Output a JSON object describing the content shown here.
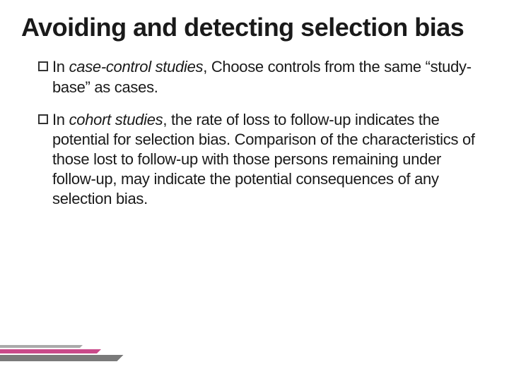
{
  "slide": {
    "title": "Avoiding and detecting selection bias",
    "bullets": [
      {
        "prefix": "In ",
        "italicPhrase": "case-control studies",
        "rest": ", Choose controls from the same “study-base” as cases."
      },
      {
        "prefix": "In ",
        "italicPhrase": "cohort studies",
        "rest": ", the rate of loss to follow-up indicates the potential for selection bias. Comparison of the characteristics of those lost to follow-up with those persons remaining under follow-up, may indicate the potential consequences of any selection bias."
      }
    ]
  },
  "styling": {
    "background_color": "#ffffff",
    "title_color": "#1a1a1a",
    "title_fontsize": 36,
    "body_fontsize": 22,
    "body_color": "#1a1a1a",
    "bullet_border_color": "#333333",
    "decoration": {
      "line1_color": "#7a7a7a",
      "line2_color": "#c94a8a",
      "line3_color": "#aaaaaa"
    }
  }
}
